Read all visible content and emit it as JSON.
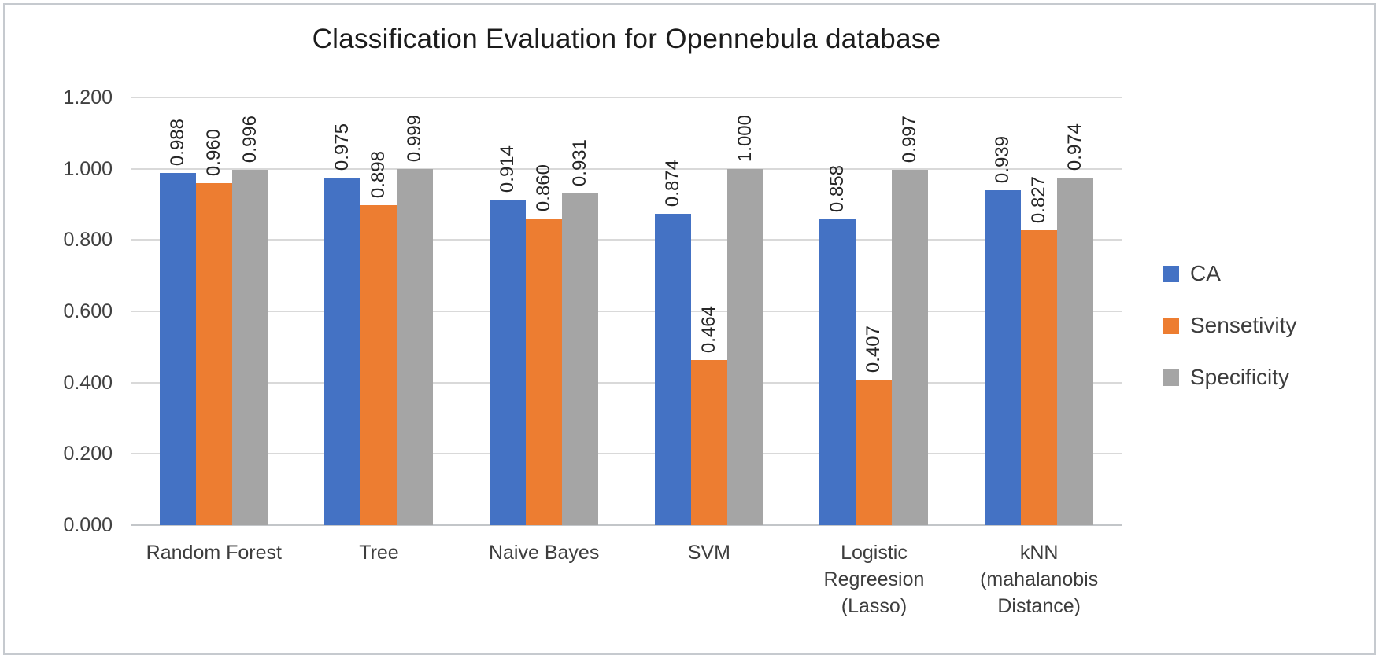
{
  "chart_data": {
    "type": "bar",
    "title": "Classification Evaluation for Opennebula database",
    "categories": [
      "Random Forest",
      "Tree",
      "Naive Bayes",
      "SVM",
      "Logistic\nRegreesion\n(Lasso)",
      "kNN\n(mahalanobis\nDistance)"
    ],
    "series": [
      {
        "name": "CA",
        "color": "#4472C4",
        "values": [
          0.988,
          0.975,
          0.914,
          0.874,
          0.858,
          0.939
        ]
      },
      {
        "name": "Sensetivity",
        "color": "#ED7D31",
        "values": [
          0.96,
          0.898,
          0.86,
          0.464,
          0.407,
          0.827
        ]
      },
      {
        "name": "Specificity",
        "color": "#A5A5A5",
        "values": [
          0.996,
          0.999,
          0.931,
          1.0,
          0.997,
          0.974
        ]
      }
    ],
    "y_ticks": [
      "1.200",
      "1.000",
      "0.800",
      "0.600",
      "0.400",
      "0.200",
      "0.000"
    ],
    "ylim": [
      0,
      1.2
    ],
    "grid": true,
    "legend_position": "right",
    "data_label_format": "0.000",
    "data_labels_rotated": true,
    "colors": {
      "gridline": "#d9d9d9",
      "baseline": "#c3c6c9",
      "axis_text": "#404040",
      "title_text": "#1c1c1c"
    }
  }
}
